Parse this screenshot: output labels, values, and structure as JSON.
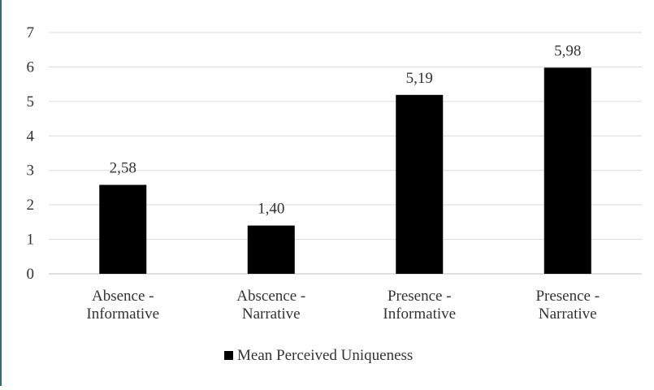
{
  "chart_data": {
    "type": "bar",
    "title": "",
    "xlabel": "",
    "ylabel": "",
    "ylim": [
      0,
      7
    ],
    "yticks": [
      0,
      1,
      2,
      3,
      4,
      5,
      6,
      7
    ],
    "grid": true,
    "legend_position": "bottom",
    "categories": [
      [
        "Absence -",
        "Informative"
      ],
      [
        "Abscence -",
        "Narrative"
      ],
      [
        "Presence -",
        "Informative"
      ],
      [
        "Presence -",
        "Narrative"
      ]
    ],
    "series": [
      {
        "name": "Mean Perceived Uniqueness",
        "values": [
          2.58,
          1.4,
          5.19,
          5.98
        ],
        "value_labels": [
          "2,58",
          "1,40",
          "5,19",
          "5,98"
        ],
        "color": "#000000"
      }
    ]
  }
}
